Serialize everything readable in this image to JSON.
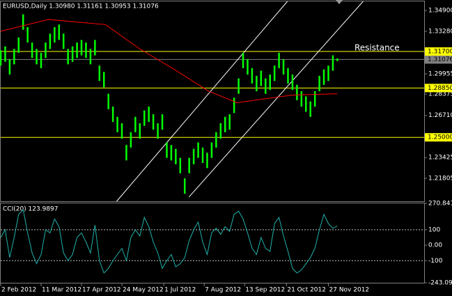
{
  "chart_data": [
    {
      "type": "ohlc",
      "title": "EURUSD,Daily  1.30980 1.31161 1.30953 1.31076",
      "x": [
        0,
        3,
        6,
        9,
        12,
        15,
        18,
        21,
        24,
        27,
        30,
        33,
        36,
        39,
        42,
        45,
        48,
        51,
        54,
        57,
        60,
        63,
        66,
        69,
        72,
        75,
        78,
        81,
        84,
        87,
        90,
        93,
        96,
        99,
        102,
        105,
        108,
        111,
        114,
        117,
        120,
        123,
        126,
        129,
        132,
        135,
        138,
        141,
        144,
        147,
        150,
        153,
        156,
        159,
        162,
        165,
        168,
        171,
        174,
        177,
        180,
        183,
        186,
        189,
        192,
        195,
        198,
        201,
        204,
        207,
        210,
        213,
        216,
        219,
        222,
        225
      ],
      "high": [
        1.318,
        1.321,
        1.311,
        1.319,
        1.328,
        1.346,
        1.336,
        1.324,
        1.319,
        1.316,
        1.324,
        1.331,
        1.336,
        1.338,
        1.331,
        1.319,
        1.321,
        1.324,
        1.326,
        1.324,
        1.319,
        1.326,
        1.306,
        1.301,
        1.284,
        1.274,
        1.266,
        1.261,
        1.244,
        1.254,
        1.266,
        1.261,
        1.271,
        1.274,
        1.268,
        1.261,
        1.268,
        1.246,
        1.244,
        1.241,
        1.234,
        1.218,
        1.234,
        1.241,
        1.246,
        1.242,
        1.238,
        1.246,
        1.254,
        1.261,
        1.266,
        1.268,
        1.281,
        1.296,
        1.316,
        1.311,
        1.304,
        1.298,
        1.302,
        1.296,
        1.299,
        1.306,
        1.316,
        1.311,
        1.304,
        1.299,
        1.291,
        1.286,
        1.282,
        1.278,
        1.286,
        1.298,
        1.303,
        1.306,
        1.314,
        1.31161
      ],
      "low": [
        1.306,
        1.309,
        1.299,
        1.307,
        1.316,
        1.334,
        1.324,
        1.312,
        1.307,
        1.304,
        1.312,
        1.319,
        1.324,
        1.326,
        1.319,
        1.307,
        1.309,
        1.312,
        1.314,
        1.312,
        1.307,
        1.314,
        1.294,
        1.289,
        1.272,
        1.262,
        1.254,
        1.249,
        1.232,
        1.242,
        1.254,
        1.249,
        1.259,
        1.262,
        1.256,
        1.249,
        1.256,
        1.234,
        1.232,
        1.229,
        1.222,
        1.206,
        1.222,
        1.229,
        1.234,
        1.23,
        1.226,
        1.234,
        1.242,
        1.249,
        1.254,
        1.256,
        1.269,
        1.284,
        1.304,
        1.299,
        1.292,
        1.286,
        1.29,
        1.284,
        1.287,
        1.294,
        1.304,
        1.299,
        1.292,
        1.287,
        1.279,
        1.274,
        1.27,
        1.266,
        1.274,
        1.286,
        1.291,
        1.294,
        1.302,
        1.30953
      ],
      "color": "#00ff00",
      "ma": {
        "x": [
          0,
          32,
          70,
          93,
          116,
          139,
          158,
          176,
          195,
          225
        ],
        "values": [
          1.3328,
          1.342,
          1.338,
          1.319,
          1.303,
          1.286,
          1.277,
          1.28,
          1.283,
          1.284
        ],
        "color": "#ff0000"
      },
      "channel": [
        {
          "x": [
            77.5,
            191.6
          ],
          "y": [
            1.2001,
            1.3561
          ]
        },
        {
          "x": [
            125.8,
            242.2
          ],
          "y": [
            1.2034,
            1.3561
          ]
        }
      ],
      "channel_color": "#ffffff",
      "levels": [
        {
          "value": 1.317,
          "label": "1.31700"
        },
        {
          "value": 1.2885,
          "label": "1.28850"
        },
        {
          "value": 1.25,
          "label": "1.25000"
        }
      ],
      "level_color": "#ffff00",
      "price_line": {
        "value": 1.31076,
        "label": "1.31076"
      },
      "annotation": "Resistance",
      "xlim": [
        0,
        283
      ],
      "ylim": [
        1.2001,
        1.3561
      ],
      "yticks": [
        {
          "value": 1.349,
          "label": "1.34900"
        },
        {
          "value": 1.3328,
          "label": "1.33280"
        },
        {
          "value": 1.29955,
          "label": "1.29955"
        },
        {
          "value": 1.28375,
          "label": "1.28375"
        },
        {
          "value": 1.2671,
          "label": "1.26710"
        },
        {
          "value": 1.23425,
          "label": "1.23425"
        },
        {
          "value": 1.21805,
          "label": "1.21805"
        }
      ]
    },
    {
      "type": "line",
      "title": "CCI(20) 123.9897",
      "x": [
        0,
        3,
        6,
        9,
        12,
        15,
        18,
        21,
        24,
        27,
        30,
        33,
        36,
        39,
        42,
        45,
        48,
        51,
        54,
        57,
        60,
        63,
        66,
        69,
        72,
        75,
        78,
        81,
        84,
        87,
        90,
        93,
        96,
        99,
        102,
        105,
        108,
        111,
        114,
        117,
        120,
        123,
        126,
        129,
        132,
        135,
        138,
        141,
        144,
        147,
        150,
        153,
        156,
        159,
        162,
        165,
        168,
        171,
        174,
        177,
        180,
        183,
        186,
        189,
        192,
        195,
        198,
        201,
        204,
        207,
        210,
        213,
        216,
        219,
        222,
        225
      ],
      "values": [
        50,
        100,
        -80,
        50,
        200,
        230,
        80,
        -50,
        -120,
        -60,
        100,
        80,
        170,
        120,
        -50,
        -100,
        -60,
        50,
        80,
        20,
        -50,
        130,
        -100,
        -180,
        -150,
        -100,
        -60,
        -20,
        -100,
        50,
        100,
        60,
        180,
        120,
        20,
        -50,
        -150,
        -100,
        -60,
        -140,
        -120,
        -80,
        30,
        100,
        150,
        20,
        -60,
        80,
        110,
        70,
        120,
        90,
        200,
        220,
        170,
        80,
        -20,
        -60,
        50,
        -20,
        -40,
        140,
        180,
        60,
        -40,
        -150,
        -180,
        -160,
        -120,
        -80,
        -20,
        100,
        200,
        140,
        110,
        123.9897
      ],
      "color": "#20b2aa",
      "levels": [
        100,
        -100
      ],
      "xlim": [
        0,
        283
      ],
      "ylim": [
        -243.09,
        270.8412
      ],
      "yticks": [
        270.8412,
        100,
        {
          "value": 0,
          "label": "0.00"
        },
        -100,
        -243.09
      ],
      "xticks": [
        {
          "value": 0,
          "label": "2 Feb 2012"
        },
        {
          "value": 27,
          "label": "11 Mar 2012"
        },
        {
          "value": 54,
          "label": "17 Apr 2012"
        },
        {
          "value": 81,
          "label": "24 May 2012"
        },
        {
          "value": 109,
          "label": "1 Jul 2012"
        },
        {
          "value": 136,
          "label": "7 Aug 2012"
        },
        {
          "value": 163,
          "label": "13 Sep 2012"
        },
        {
          "value": 191,
          "label": "21 Oct 2012"
        },
        {
          "value": 219,
          "label": "27 Nov 2012"
        }
      ]
    }
  ]
}
